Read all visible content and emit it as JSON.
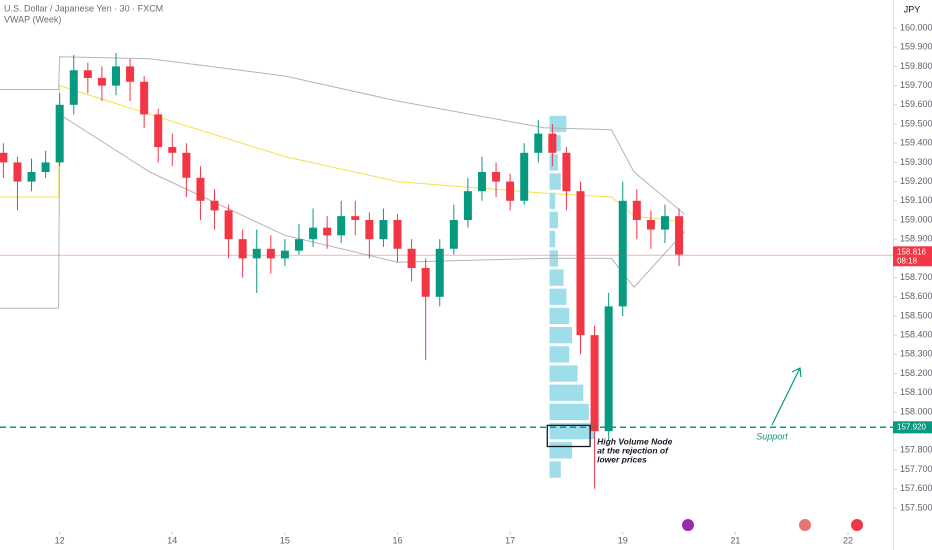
{
  "chart_data": {
    "type": "candlestick",
    "title": "U.S. Dollar / Japanese Yen · 30 · FXCM",
    "indicator": "VWAP (Week)",
    "currency": "JPY",
    "xlim": [
      -0.53,
      7.4
    ],
    "xticks": [
      {
        "value": 0,
        "label": "12"
      },
      {
        "value": 1,
        "label": "14"
      },
      {
        "value": 2,
        "label": "15"
      },
      {
        "value": 3,
        "label": "16"
      },
      {
        "value": 4,
        "label": "17"
      },
      {
        "value": 5,
        "label": "19"
      },
      {
        "value": 6,
        "label": "21"
      },
      {
        "value": 7,
        "label": "22"
      }
    ],
    "ylim": [
      157.385,
      160.146
    ],
    "yticks": [
      {
        "value": 157.5,
        "label": "157.500"
      },
      {
        "value": 157.6,
        "label": "157.600"
      },
      {
        "value": 157.7,
        "label": "157.700"
      },
      {
        "value": 157.8,
        "label": "157.800"
      },
      {
        "value": 157.9,
        "label": "157.900"
      },
      {
        "value": 158.0,
        "label": "158.000"
      },
      {
        "value": 158.1,
        "label": "158.100"
      },
      {
        "value": 158.2,
        "label": "158.200"
      },
      {
        "value": 158.3,
        "label": "158.300"
      },
      {
        "value": 158.4,
        "label": "158.400"
      },
      {
        "value": 158.5,
        "label": "158.500"
      },
      {
        "value": 158.6,
        "label": "158.600"
      },
      {
        "value": 158.7,
        "label": "158.700"
      },
      {
        "value": 158.8,
        "label": "158.800"
      },
      {
        "value": 158.9,
        "label": "158.900"
      },
      {
        "value": 159.0,
        "label": "159.000"
      },
      {
        "value": 159.1,
        "label": "159.100"
      },
      {
        "value": 159.2,
        "label": "159.200"
      },
      {
        "value": 159.3,
        "label": "159.300"
      },
      {
        "value": 159.4,
        "label": "159.400"
      },
      {
        "value": 159.5,
        "label": "159.500"
      },
      {
        "value": 159.6,
        "label": "159.600"
      },
      {
        "value": 159.7,
        "label": "159.700"
      },
      {
        "value": 159.8,
        "label": "159.800"
      },
      {
        "value": 159.9,
        "label": "159.900"
      },
      {
        "value": 160.0,
        "label": "160.000"
      }
    ],
    "up_color": "#089981",
    "down_color": "#f23645",
    "x": [
      -0.5,
      -0.375,
      -0.25,
      -0.125,
      0,
      0.125,
      0.25,
      0.375,
      0.5,
      0.625,
      0.75,
      0.875,
      1,
      1.125,
      1.25,
      1.375,
      1.5,
      1.625,
      1.75,
      1.875,
      2,
      2.125,
      2.25,
      2.375,
      2.5,
      2.625,
      2.75,
      2.875,
      3,
      3.125,
      3.25,
      3.375,
      3.5,
      3.625,
      3.75,
      3.875,
      4,
      4.125,
      4.25,
      4.375,
      4.5,
      4.625,
      4.75,
      4.875,
      5,
      5.125,
      5.25,
      5.375,
      5.5
    ],
    "open": [
      159.35,
      159.3,
      159.2,
      159.25,
      159.3,
      159.6,
      159.78,
      159.74,
      159.7,
      159.8,
      159.72,
      159.55,
      159.38,
      159.35,
      159.22,
      159.1,
      159.05,
      158.9,
      158.8,
      158.85,
      158.8,
      158.84,
      158.9,
      158.96,
      158.92,
      159.02,
      159.0,
      158.9,
      159.0,
      158.85,
      158.75,
      158.6,
      158.85,
      159.0,
      159.15,
      159.25,
      159.2,
      159.1,
      159.35,
      159.45,
      159.35,
      159.15,
      158.4,
      157.9,
      158.55,
      159.1,
      159.0,
      158.95,
      159.02
    ],
    "high": [
      159.4,
      159.33,
      159.32,
      159.36,
      159.66,
      159.86,
      159.82,
      159.8,
      159.87,
      159.84,
      159.75,
      159.58,
      159.45,
      159.4,
      159.28,
      159.16,
      159.08,
      158.95,
      158.95,
      158.92,
      158.9,
      158.98,
      159.06,
      159.02,
      159.1,
      159.1,
      159.04,
      159.06,
      159.03,
      158.9,
      158.8,
      158.9,
      159.08,
      159.22,
      159.33,
      159.3,
      159.24,
      159.4,
      159.52,
      159.5,
      159.38,
      159.2,
      158.45,
      158.62,
      159.2,
      159.16,
      159.05,
      159.08,
      159.06
    ],
    "low": [
      159.22,
      159.05,
      159.15,
      159.22,
      159.28,
      159.55,
      159.66,
      159.62,
      159.65,
      159.62,
      159.48,
      159.3,
      159.28,
      159.12,
      159.0,
      158.95,
      158.8,
      158.7,
      158.62,
      158.72,
      158.76,
      158.82,
      158.86,
      158.85,
      158.88,
      158.92,
      158.8,
      158.86,
      158.78,
      158.68,
      158.27,
      158.55,
      158.82,
      158.96,
      159.1,
      159.12,
      159.05,
      159.08,
      159.3,
      159.28,
      159.05,
      158.3,
      157.6,
      157.85,
      158.5,
      158.9,
      158.85,
      158.88,
      158.76
    ],
    "close": [
      159.3,
      159.2,
      159.25,
      159.3,
      159.6,
      159.78,
      159.74,
      159.7,
      159.8,
      159.72,
      159.55,
      159.38,
      159.35,
      159.22,
      159.1,
      159.05,
      158.9,
      158.8,
      158.85,
      158.8,
      158.84,
      158.9,
      158.96,
      158.92,
      159.02,
      159.0,
      158.9,
      159.0,
      158.85,
      158.75,
      158.6,
      158.85,
      159.0,
      159.15,
      159.25,
      159.2,
      159.1,
      159.35,
      159.45,
      159.35,
      159.15,
      158.4,
      157.9,
      158.55,
      159.1,
      159.0,
      158.95,
      159.02,
      158.82
    ],
    "lines": {
      "x": [
        -0.53,
        -0.01,
        0.0,
        0.8,
        2.0,
        3.0,
        4.3,
        4.9,
        5.1,
        5.55
      ],
      "series": [
        {
          "color": "#f5e04a",
          "values": [
            159.12,
            159.12,
            159.7,
            159.55,
            159.33,
            159.2,
            159.14,
            159.12,
            159.02,
            158.99
          ]
        },
        {
          "color": "#b2b5be",
          "values": [
            159.68,
            159.68,
            159.85,
            159.84,
            159.75,
            159.62,
            159.48,
            159.47,
            159.25,
            159.03
          ]
        },
        {
          "color": "#b2b5be",
          "values": [
            158.54,
            158.54,
            159.55,
            159.25,
            158.92,
            158.78,
            158.8,
            158.8,
            158.65,
            158.94
          ]
        }
      ]
    },
    "volume_profile": {
      "x": 4.35,
      "color": "#4fc3d9",
      "levels": [
        159.5,
        159.4,
        159.3,
        159.2,
        159.1,
        159.0,
        158.9,
        158.8,
        158.7,
        158.6,
        158.5,
        158.4,
        158.3,
        158.2,
        158.1,
        158.0,
        157.9,
        157.8,
        157.7
      ],
      "volumes": [
        30,
        20,
        15,
        20,
        10,
        15,
        10,
        15,
        25,
        30,
        35,
        40,
        35,
        50,
        60,
        70,
        80,
        40,
        20
      ]
    },
    "current_price": {
      "value": 158.816,
      "label": "158.816",
      "countdown": "08:18",
      "color": "#f23645"
    },
    "support": {
      "value": 157.92,
      "label": "157.920",
      "text": "Support",
      "color": "#089981"
    },
    "box": {
      "x": [
        4.33,
        4.71
      ],
      "y": [
        157.93,
        157.82
      ],
      "annotation": [
        "High Volume Node",
        "at the rejection of",
        "lower prices"
      ]
    }
  }
}
